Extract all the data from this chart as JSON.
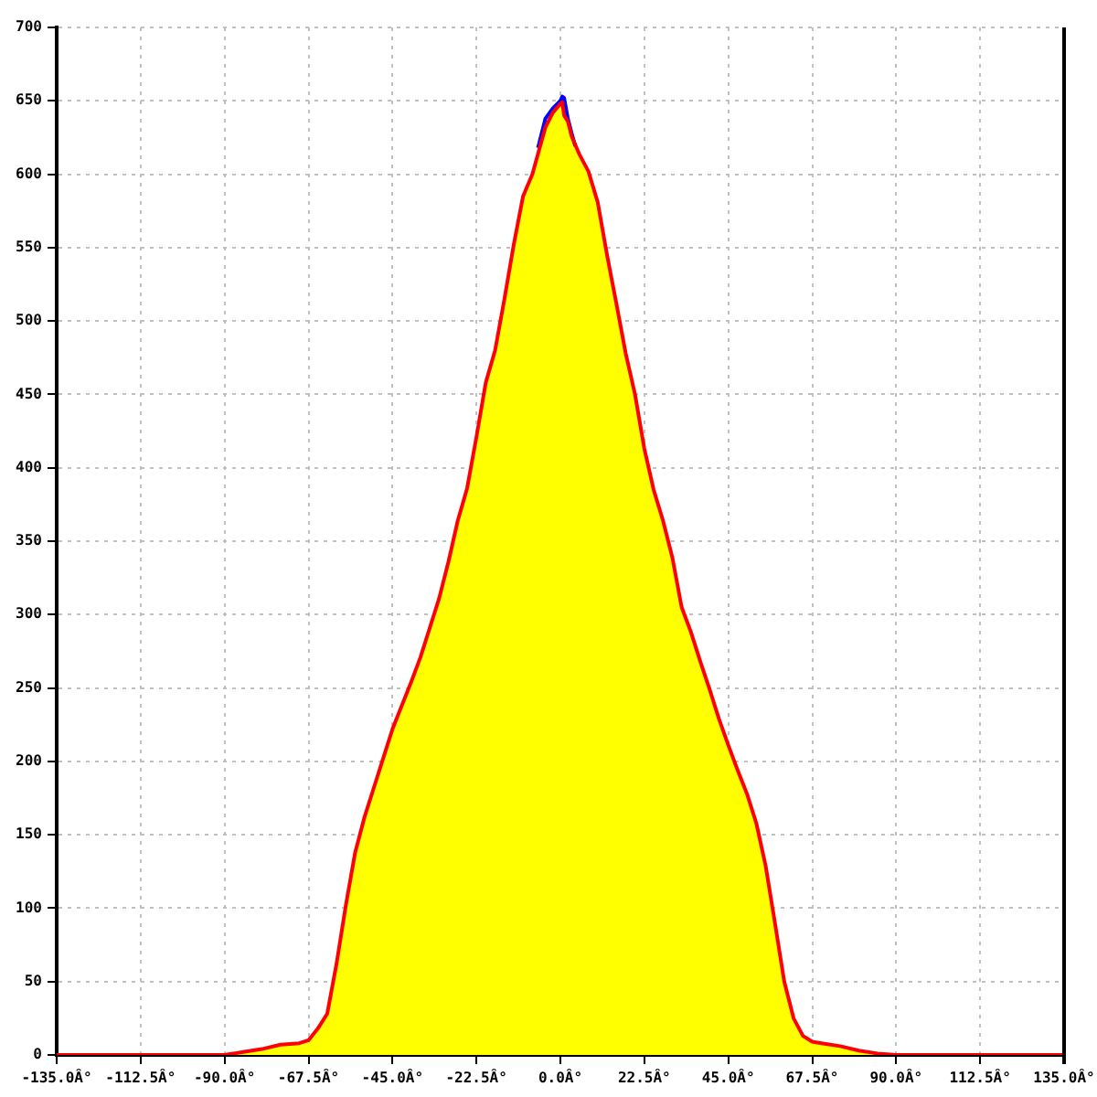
{
  "chart_data": {
    "type": "line",
    "x": [
      -135,
      -90,
      -85,
      -80,
      -75,
      -70,
      -67.5,
      -65,
      -62.5,
      -60,
      -57.5,
      -55,
      -52.5,
      -50,
      -47.5,
      -45,
      -42.5,
      -40,
      -37.5,
      -35,
      -32.5,
      -30,
      -27.5,
      -25,
      -22.5,
      -20,
      -17.5,
      -15,
      -12.5,
      -10,
      -7.5,
      -5,
      -4,
      -2,
      0,
      0.5,
      1,
      2,
      3,
      4,
      5,
      7.5,
      10,
      12.5,
      15,
      17.5,
      20,
      22.5,
      25,
      27.5,
      30,
      32.5,
      35,
      37.5,
      40,
      42.5,
      45,
      47.5,
      50,
      52.5,
      55,
      57.5,
      60,
      62.5,
      65,
      67.5,
      70,
      75,
      80,
      85,
      90,
      135
    ],
    "series": [
      {
        "type": "area",
        "color": "#ffff00",
        "x": [
          -90,
          -85,
          -80,
          -75,
          -70,
          -67.5,
          -65,
          -62.5,
          -60,
          -57.5,
          -55,
          -52.5,
          -50,
          -47.5,
          -45,
          -42.5,
          -40,
          -37.5,
          -35,
          -32.5,
          -30,
          -27.5,
          -25,
          -22.5,
          -20,
          -17.5,
          -15,
          -12.5,
          -10,
          -7.5,
          -5,
          -4,
          -2,
          0,
          0.5,
          1,
          2,
          3,
          4,
          5,
          7.5,
          10,
          12.5,
          15,
          17.5,
          20,
          22.5,
          25,
          27.5,
          30,
          32.5,
          35,
          37.5,
          40,
          42.5,
          45,
          47.5,
          50,
          52.5,
          55,
          57.5,
          60,
          62.5,
          65,
          67.5,
          70,
          75,
          80,
          85,
          90
        ],
        "values": [
          0,
          2,
          4,
          7,
          8,
          10,
          18,
          28,
          62,
          102,
          138,
          162,
          182,
          202,
          222,
          238,
          254,
          271,
          291,
          311,
          336,
          364,
          386,
          421,
          458,
          480,
          515,
          552,
          585,
          600,
          623,
          632,
          642,
          648,
          649,
          640,
          636,
          626,
          620,
          614,
          602,
          581,
          545,
          512,
          478,
          450,
          413,
          385,
          364,
          339,
          305,
          288,
          268,
          249,
          229,
          211,
          194,
          178,
          158,
          129,
          90,
          50,
          25,
          13,
          9,
          8,
          6,
          3,
          1,
          0
        ]
      },
      {
        "color": "#0000ff",
        "x": [
          -6,
          -4,
          -2,
          0,
          0.5,
          1,
          2,
          3,
          4
        ],
        "values": [
          618,
          638,
          645,
          650,
          653,
          652,
          638,
          628,
          619
        ]
      },
      {
        "color": "#ff0000",
        "values": [
          0,
          0,
          2,
          4,
          7,
          8,
          10,
          18,
          28,
          62,
          102,
          138,
          162,
          182,
          202,
          222,
          238,
          254,
          271,
          291,
          311,
          336,
          364,
          386,
          421,
          458,
          480,
          515,
          552,
          585,
          600,
          623,
          632,
          642,
          648,
          649,
          640,
          636,
          626,
          620,
          614,
          602,
          581,
          545,
          512,
          478,
          450,
          413,
          385,
          364,
          339,
          305,
          288,
          268,
          249,
          229,
          211,
          194,
          178,
          158,
          129,
          90,
          50,
          25,
          13,
          9,
          8,
          6,
          3,
          1,
          0,
          0
        ]
      }
    ],
    "xlim": [
      -135,
      135
    ],
    "xticks": [
      {
        "value": -135,
        "label": "-135.0Â°"
      },
      {
        "value": -112.5,
        "label": "-112.5Â°"
      },
      {
        "value": -90,
        "label": "-90.0Â°"
      },
      {
        "value": -67.5,
        "label": "-67.5Â°"
      },
      {
        "value": -45,
        "label": "-45.0Â°"
      },
      {
        "value": -22.5,
        "label": "-22.5Â°"
      },
      {
        "value": 0,
        "label": "0.0Â°"
      },
      {
        "value": 22.5,
        "label": "22.5Â°"
      },
      {
        "value": 45,
        "label": "45.0Â°"
      },
      {
        "value": 67.5,
        "label": "67.5Â°"
      },
      {
        "value": 90,
        "label": "90.0Â°"
      },
      {
        "value": 112.5,
        "label": "112.5Â°"
      },
      {
        "value": 135,
        "label": "135.0Â°"
      }
    ],
    "ylim": [
      0,
      700
    ],
    "yticks": [
      0,
      50,
      100,
      150,
      200,
      250,
      300,
      350,
      400,
      450,
      500,
      550,
      600,
      650,
      700
    ],
    "grid": true,
    "legend": false
  }
}
